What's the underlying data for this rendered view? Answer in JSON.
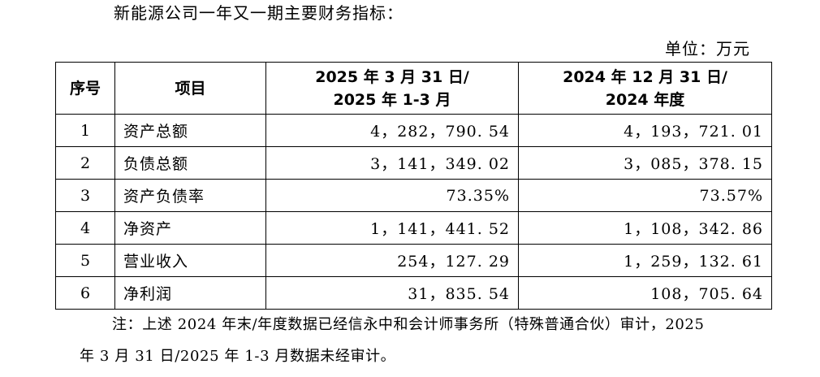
{
  "intro": "新能源公司一年又一期主要财务指标：",
  "unit": "单位：万元",
  "table": {
    "headers": {
      "no": "序号",
      "item": "项目",
      "col_a_line1": "2025 年 3 月 31 日/",
      "col_a_line2": "2025 年 1-3 月",
      "col_b_line1": "2024 年 12 月 31 日/",
      "col_b_line2": "2024 年度"
    },
    "rows": [
      {
        "no": "1",
        "item": "资产总额",
        "a": "4，282，790. 54",
        "b": "4，193，721. 01"
      },
      {
        "no": "2",
        "item": "负债总额",
        "a": "3，141，349. 02",
        "b": "3，085，378. 15"
      },
      {
        "no": "3",
        "item": "资产负债率",
        "a": "73.35%",
        "b": "73.57%"
      },
      {
        "no": "4",
        "item": "净资产",
        "a": "1，141，441. 52",
        "b": "1，108，342. 86"
      },
      {
        "no": "5",
        "item": "营业收入",
        "a": "254，127. 29",
        "b": "1，259，132. 61"
      },
      {
        "no": "6",
        "item": "净利润",
        "a": "31，835. 54",
        "b": "108，705. 64"
      }
    ]
  },
  "note": {
    "line1": "注：上述 2024 年末/年度数据已经信永中和会计师事务所（特殊普通合伙）审计，2025",
    "line2": "年 3 月 31 日/2025 年 1-3 月数据未经审计。"
  }
}
